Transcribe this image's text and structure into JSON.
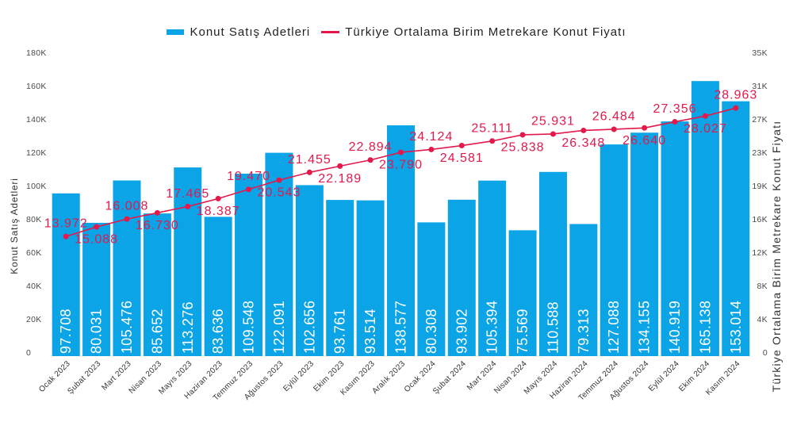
{
  "colors": {
    "bar": "#0ba4e6",
    "line": "#e3194b",
    "bar_label": "#ffffff"
  },
  "chart_data": {
    "type": "bar",
    "categories": [
      "Ocak 2023",
      "Şubat 2023",
      "Mart 2023",
      "Nisan 2023",
      "Mayıs 2023",
      "Haziran 2023",
      "Temmuz 2023",
      "Ağustos 2023",
      "Eylül 2023",
      "Ekim 2023",
      "Kasım 2023",
      "Aralık 2023",
      "Ocak 2024",
      "Şubat 2024",
      "Mart 2024",
      "Nisan 2024",
      "Mayıs 2024",
      "Haziran 2024",
      "Temmuz 2024",
      "Ağustos 2024",
      "Eylül 2024",
      "Ekim 2024",
      "Kasım 2024"
    ],
    "series": [
      {
        "name": "Konut Satış Adetleri",
        "type": "bar",
        "axis": "left",
        "values": [
          97708,
          80031,
          105476,
          85652,
          113276,
          83636,
          109548,
          122091,
          102656,
          93761,
          93514,
          138577,
          80308,
          93902,
          105394,
          75569,
          110588,
          79313,
          127088,
          134155,
          140919,
          165138,
          153014
        ],
        "labels": [
          "97.708",
          "80.031",
          "105.476",
          "85.652",
          "113.276",
          "83.636",
          "109.548",
          "122.091",
          "102.656",
          "93.761",
          "93.514",
          "138.577",
          "80.308",
          "93.902",
          "105.394",
          "75.569",
          "110.588",
          "79.313",
          "127.088",
          "134.155",
          "140.919",
          "165.138",
          "153.014"
        ]
      },
      {
        "name": "Türkiye Ortalama Birim Metrekare Konut Fiyatı",
        "type": "line",
        "axis": "right",
        "values": [
          13972,
          15088,
          16008,
          16730,
          17465,
          18387,
          19470,
          20543,
          21455,
          22189,
          22894,
          23790,
          24124,
          24581,
          25111,
          25838,
          25931,
          26348,
          26484,
          26640,
          27356,
          28027,
          28963
        ],
        "labels": [
          "13.972",
          "15.088",
          "16.008",
          "16.730",
          "17.465",
          "18.387",
          "19.470",
          "20.543",
          "21.455",
          "22.189",
          "22.894",
          "23.790",
          "24.124",
          "24.581",
          "25.111",
          "25.838",
          "25.931",
          "26.348",
          "26.484",
          "26.640",
          "27.356",
          "28.027",
          "28.963"
        ]
      }
    ],
    "ylabel": "Konut Satış Adetleri",
    "y2label": "Türkiye Ortalama Birim Metrekare Konut Fiyatı",
    "ylim": [
      0,
      180000
    ],
    "y2lim": [
      0,
      35000
    ],
    "yticks": [
      "0",
      "20K",
      "40K",
      "60K",
      "80K",
      "100K",
      "120K",
      "140K",
      "160K",
      "180K"
    ],
    "y2ticks": [
      "0",
      "4K",
      "8K",
      "12K",
      "16K",
      "19K",
      "23K",
      "27K",
      "31K",
      "35K"
    ],
    "grid": false,
    "legend": "top-center"
  }
}
